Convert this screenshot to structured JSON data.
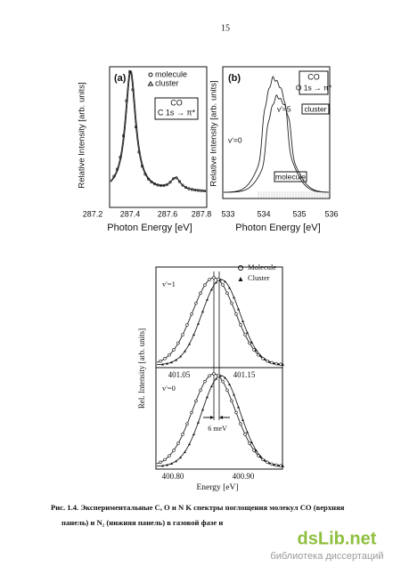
{
  "page_number": "15",
  "figure_top": {
    "panel_a": {
      "label": "(a)",
      "legend": [
        "molecule",
        "cluster"
      ],
      "box": [
        "CO",
        "C 1s → π*"
      ],
      "y_axis_label": "Relative Intensity [arb. units]",
      "x_ticks": [
        "287.2",
        "287.4",
        "287.6",
        "287.8"
      ],
      "x_axis_label": "Photon Energy [eV]"
    },
    "panel_b": {
      "label": "(b)",
      "box": [
        "CO",
        "O 1s → π*"
      ],
      "annotations": [
        "v'=5",
        "v'=0",
        "cluster",
        "molecule"
      ],
      "y_axis_label": "Relative Intensity [arb. units]",
      "x_ticks": [
        "533",
        "534",
        "535",
        "536"
      ],
      "x_axis_label": "Photon Energy [eV]"
    }
  },
  "figure_bottom": {
    "legend": [
      "Molecule",
      "Cluster"
    ],
    "top_label": "v'=1",
    "top_ticks": [
      "401.05",
      "401.15"
    ],
    "bottom_label": "v'=0",
    "bottom_ticks": [
      "400.80",
      "400.90"
    ],
    "annotation": "6 meV",
    "y_axis_label": "Rel. Intensity [arb. units]",
    "x_axis_label": "Energy [eV]"
  },
  "caption": [
    "Рис. 1.4. Экспериментальные C, O и N K спектры поглощения молекул CO (верхняя",
    "панель) и N₂ (нижняя панель) в газовой фазе и"
  ],
  "watermark": {
    "logo": "dsLib.net",
    "tagline": "библиотека диссертаций"
  }
}
